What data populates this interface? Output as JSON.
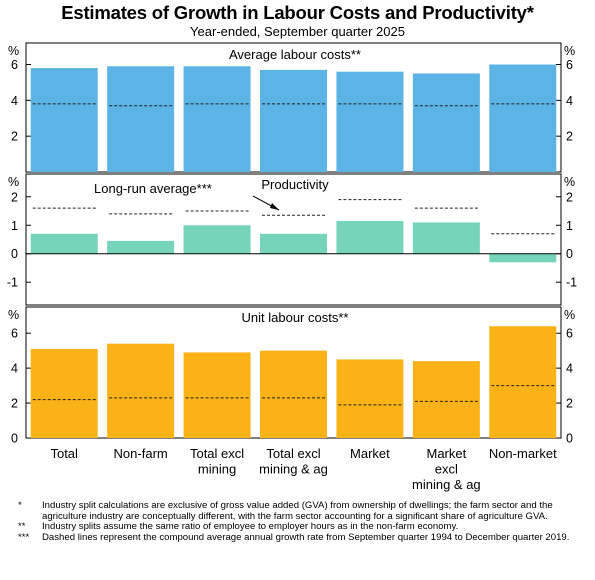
{
  "title": "Estimates of Growth in Labour Costs and Productivity*",
  "subtitle": "Year-ended, September quarter 2025",
  "colors": {
    "panel1": "#5BB3E6",
    "panel2": "#76D4BB",
    "panel3": "#FBB216"
  },
  "chart_data": [
    {
      "type": "bar",
      "title": "Average labour costs**",
      "unit": "%",
      "ylim": [
        0,
        7.2
      ],
      "ticks": [
        "2",
        "4",
        "6"
      ],
      "categories": [
        "Total",
        "Non-farm",
        "Total excl mining",
        "Total excl mining & ag",
        "Market",
        "Market excl mining & ag",
        "Non-market"
      ],
      "values": [
        5.8,
        5.9,
        5.9,
        5.7,
        5.6,
        5.5,
        6.0
      ],
      "long_run_average": [
        3.8,
        3.7,
        3.8,
        3.8,
        3.8,
        3.7,
        3.8
      ]
    },
    {
      "type": "bar",
      "title": "Productivity",
      "unit": "%",
      "ylim": [
        -1.8,
        2.8
      ],
      "ticks": [
        "-1",
        "0",
        "1",
        "2"
      ],
      "annotation": "Long-run average***",
      "categories": [
        "Total",
        "Non-farm",
        "Total excl mining",
        "Total excl mining & ag",
        "Market",
        "Market excl mining & ag",
        "Non-market"
      ],
      "values": [
        0.7,
        0.45,
        1.0,
        0.7,
        1.15,
        1.1,
        -0.3
      ],
      "long_run_average": [
        1.6,
        1.4,
        1.5,
        1.35,
        1.9,
        1.6,
        0.7
      ]
    },
    {
      "type": "bar",
      "title": "Unit labour costs**",
      "unit": "%",
      "ylim": [
        0,
        7.5
      ],
      "ticks": [
        "0",
        "2",
        "4",
        "6"
      ],
      "categories": [
        "Total",
        "Non-farm",
        "Total excl mining",
        "Total excl mining & ag",
        "Market",
        "Market excl mining & ag",
        "Non-market"
      ],
      "values": [
        5.1,
        5.4,
        4.9,
        5.0,
        4.5,
        4.4,
        6.4
      ],
      "long_run_average": [
        2.2,
        2.3,
        2.3,
        2.3,
        1.9,
        2.1,
        3.0
      ]
    }
  ],
  "x_labels": [
    [
      "Total"
    ],
    [
      "Non-farm"
    ],
    [
      "Total excl",
      "mining"
    ],
    [
      "Total excl",
      "mining & ag"
    ],
    [
      "Market"
    ],
    [
      "Market",
      "excl",
      "mining & ag"
    ],
    [
      "Non-market"
    ]
  ],
  "notes": [
    {
      "mark": "*",
      "text": "Industry split calculations are exclusive of gross value added (GVA) from ownership of dwellings; the farm sector and the agriculture industry are conceptually different, with the farm sector accounting for a significant share of agriculture GVA."
    },
    {
      "mark": "**",
      "text": "Industry splits assume the same ratio of employee to employer hours as in the non-farm economy."
    },
    {
      "mark": "***",
      "text": "Dashed lines represent the compound average annual growth rate from September quarter 1994 to December quarter 2019."
    }
  ]
}
